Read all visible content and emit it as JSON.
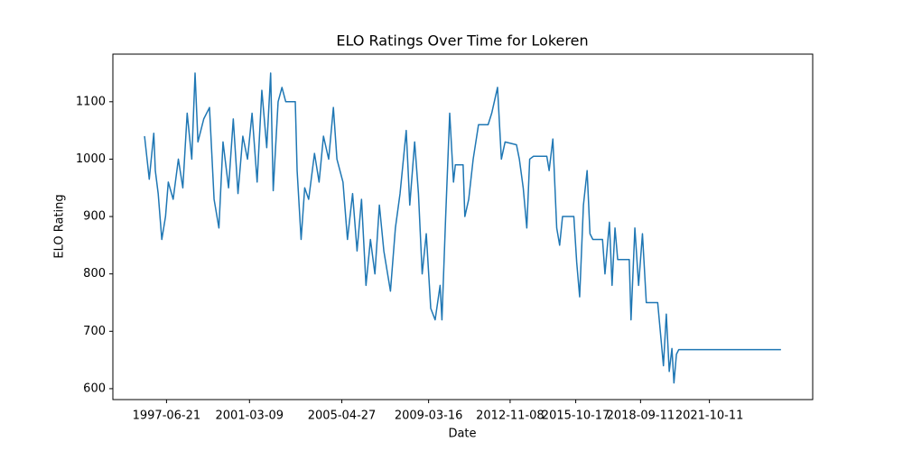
{
  "chart_data": {
    "type": "line",
    "title": "ELO Ratings Over Time for Lokeren",
    "x_label": "Date",
    "y_label": "ELO Rating",
    "color": "#1f77b4",
    "xlim": [
      "1995-01-26",
      "2026-05-27"
    ],
    "ylim": [
      581,
      1183
    ],
    "xticks": [
      "1997-06-21",
      "2001-03-09",
      "2005-04-27",
      "2009-03-16",
      "2012-11-08",
      "2015-10-17",
      "2018-09-11",
      "2021-10-11"
    ],
    "yticks": [
      600,
      700,
      800,
      900,
      1000,
      1100
    ],
    "x": [
      "1996-06-27",
      "1996-09-12",
      "1996-11-25",
      "1996-12-20",
      "1997-02-05",
      "1997-04-05",
      "1997-06-05",
      "1997-07-20",
      "1997-10-08",
      "1998-01-01",
      "1998-03-15",
      "1998-05-25",
      "1998-08-08",
      "1998-10-01",
      "1998-11-17",
      "1999-02-20",
      "1999-05-25",
      "1999-08-08",
      "1999-10-26",
      "2000-01-01",
      "2000-04-01",
      "2000-06-17",
      "2000-09-02",
      "2000-11-20",
      "2001-02-05",
      "2001-04-20",
      "2001-07-12",
      "2001-09-27",
      "2001-12-16",
      "2002-02-18",
      "2002-04-01",
      "2002-06-20",
      "2002-08-22",
      "2002-10-23",
      "2003-03-28",
      "2003-04-27",
      "2003-07-01",
      "2003-08-29",
      "2003-11-02",
      "2004-02-05",
      "2004-04-20",
      "2004-07-01",
      "2004-09-24",
      "2004-12-10",
      "2005-02-06",
      "2005-05-16",
      "2005-07-28",
      "2005-10-20",
      "2006-01-01",
      "2006-03-15",
      "2006-05-27",
      "2006-08-08",
      "2006-10-20",
      "2007-01-01",
      "2007-03-15",
      "2007-07-01",
      "2007-09-20",
      "2007-12-05",
      "2008-03-15",
      "2008-05-12",
      "2008-07-31",
      "2008-10-01",
      "2008-12-01",
      "2009-02-06",
      "2009-04-20",
      "2009-07-01",
      "2009-09-20",
      "2009-10-20",
      "2009-12-20",
      "2010-02-24",
      "2010-04-27",
      "2010-05-27",
      "2010-10-01",
      "2010-10-30",
      "2011-01-01",
      "2011-03-15",
      "2011-06-10",
      "2011-11-14",
      "2012-01-12",
      "2012-04-16",
      "2012-06-18",
      "2012-08-18",
      "2013-02-20",
      "2013-04-08",
      "2013-06-10",
      "2013-08-08",
      "2013-09-24",
      "2013-11-25",
      "2014-07-01",
      "2014-08-08",
      "2014-10-08",
      "2014-12-10",
      "2015-01-27",
      "2015-03-15",
      "2015-09-16",
      "2015-11-02",
      "2015-12-20",
      "2016-02-20",
      "2016-04-20",
      "2016-06-06",
      "2016-07-23",
      "2016-12-28",
      "2017-02-06",
      "2017-04-20",
      "2017-06-02",
      "2017-07-20",
      "2017-09-02",
      "2018-03-10",
      "2018-04-08",
      "2018-06-10",
      "2018-08-10",
      "2018-10-12",
      "2018-12-14",
      "2019-06-18",
      "2019-07-31",
      "2019-09-20",
      "2019-11-06",
      "2019-12-24",
      "2020-02-06",
      "2020-03-10",
      "2020-04-20",
      "2020-05-27",
      "2024-12-24"
    ],
    "values": [
      1040,
      965,
      1045,
      980,
      940,
      860,
      900,
      960,
      930,
      1000,
      950,
      1080,
      1000,
      1150,
      1030,
      1070,
      1090,
      930,
      880,
      1030,
      950,
      1070,
      940,
      1040,
      1000,
      1080,
      960,
      1120,
      1020,
      1150,
      945,
      1100,
      1125,
      1100,
      1100,
      980,
      860,
      950,
      930,
      1010,
      960,
      1040,
      1000,
      1090,
      1000,
      960,
      860,
      940,
      840,
      930,
      780,
      860,
      800,
      920,
      840,
      770,
      880,
      940,
      1050,
      920,
      1030,
      940,
      800,
      870,
      740,
      720,
      780,
      720,
      900,
      1080,
      960,
      990,
      990,
      900,
      930,
      1000,
      1060,
      1060,
      1080,
      1125,
      1000,
      1030,
      1025,
      1000,
      950,
      880,
      1000,
      1005,
      1005,
      980,
      1035,
      880,
      850,
      900,
      900,
      820,
      760,
      920,
      980,
      870,
      860,
      860,
      800,
      890,
      780,
      880,
      825,
      825,
      720,
      880,
      780,
      870,
      750,
      750,
      700,
      640,
      730,
      630,
      670,
      610,
      660,
      668,
      668
    ]
  }
}
